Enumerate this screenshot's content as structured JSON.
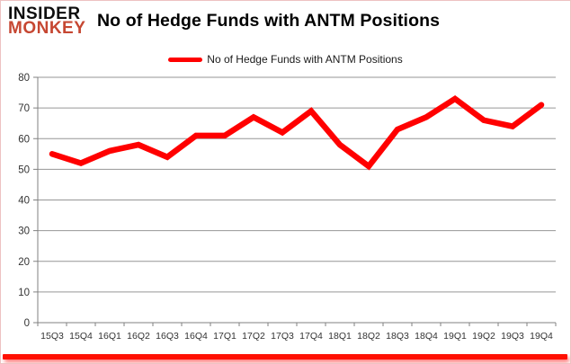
{
  "logo": {
    "line1": "INSIDER",
    "line2": "MONKEY"
  },
  "header": {
    "title": "No of Hedge Funds with ANTM Positions"
  },
  "legend": {
    "label": "No of Hedge Funds with ANTM Positions",
    "swatch_color": "#ff0000"
  },
  "colors": {
    "series": "#ff0000",
    "grid": "#969696",
    "axis": "#808080",
    "tick_text": "#333333",
    "frame_border": "#eec2c2",
    "bottom_bar": "#ff0f00",
    "logo_red": "#c64732",
    "logo_black": "#0d0d0d"
  },
  "chart_data": {
    "type": "line",
    "title": "No of Hedge Funds with ANTM Positions",
    "categories": [
      "15Q3",
      "15Q4",
      "16Q1",
      "16Q2",
      "16Q3",
      "16Q4",
      "17Q1",
      "17Q2",
      "17Q3",
      "17Q4",
      "18Q1",
      "18Q2",
      "18Q3",
      "18Q4",
      "19Q1",
      "19Q2",
      "19Q3",
      "19Q4"
    ],
    "series": [
      {
        "name": "No of Hedge Funds with ANTM Positions",
        "color": "#ff0000",
        "values": [
          55,
          52,
          56,
          58,
          54,
          61,
          61,
          67,
          62,
          69,
          58,
          51,
          63,
          67,
          73,
          66,
          64,
          71
        ]
      }
    ],
    "ylim": [
      0,
      80
    ],
    "y_ticks": [
      0,
      10,
      20,
      30,
      40,
      50,
      60,
      70,
      80
    ],
    "grid": true,
    "legend_position": "top"
  }
}
